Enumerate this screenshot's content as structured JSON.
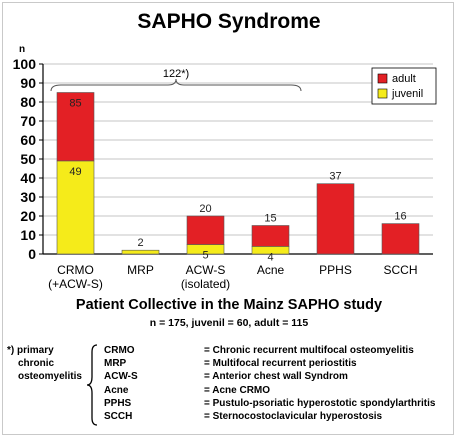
{
  "title": "SAPHO Syndrome",
  "chart_data": {
    "type": "bar",
    "stacked": true,
    "title": "SAPHO Syndrome",
    "ylabel": "n",
    "ylim": [
      0,
      100
    ],
    "yticks": [
      0,
      10,
      20,
      30,
      40,
      50,
      60,
      70,
      80,
      90,
      100
    ],
    "grid": true,
    "legend_position": "top-right",
    "categories": [
      "CRMO\n(+ACW-S)",
      "MRP",
      "ACW-S\n(isolated)",
      "Acne",
      "PPHS",
      "SCCH"
    ],
    "series": [
      {
        "name": "juvenil",
        "color": "#f5eb1a",
        "values": [
          49,
          2,
          5,
          4,
          0,
          0
        ],
        "labels": [
          "49",
          "2",
          "5",
          "4",
          "",
          ""
        ]
      },
      {
        "name": "adult",
        "color": "#e32025",
        "values": [
          36,
          0,
          15,
          11,
          37,
          16
        ],
        "labels": [
          "85",
          "",
          "20",
          "15",
          "37",
          "16"
        ]
      }
    ],
    "annotation": {
      "text": "122*)",
      "from_category": 0,
      "to_category": 3
    }
  },
  "subtitle": "Patient Collective in the Mainz SAPHO study",
  "stats": "n = 175, juvenil = 60, adult = 115",
  "footnote": {
    "label_lines": [
      "*) primary",
      "chronic",
      "osteomyelitis"
    ],
    "abbreviations": [
      "CRMO",
      "MRP",
      "ACW-S",
      "Acne",
      "PPHS",
      "SCCH"
    ],
    "definitions": [
      "= Chronic recurrent multifocal osteomyelitis",
      "= Multifocal recurrent periostitis",
      "= Anterior chest wall Syndrom",
      "= Acne CRMO",
      "= Pustulo-psoriatic hyperostotic spondylarthritis",
      "= Sternocostoclavicular hyperostosis"
    ]
  }
}
